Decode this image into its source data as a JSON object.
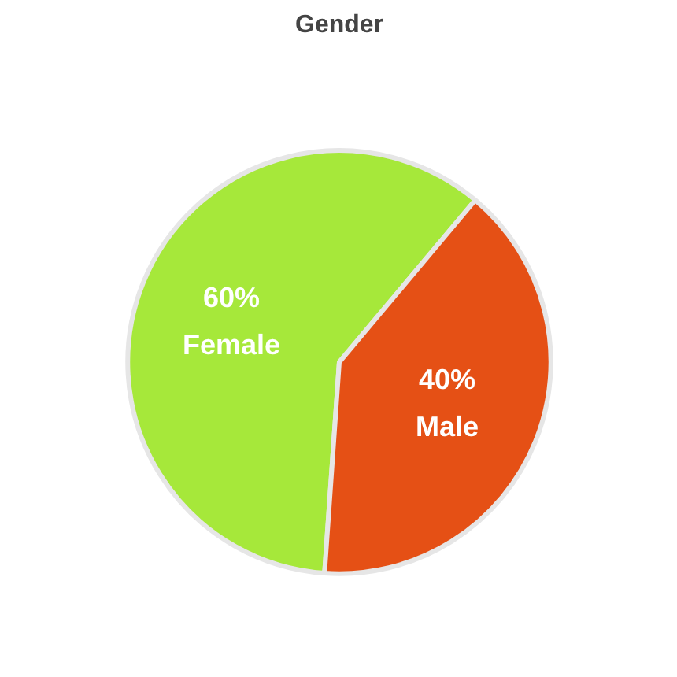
{
  "chart_data": {
    "type": "pie",
    "title": "Gender",
    "categories": [
      "Female",
      "Male"
    ],
    "values": [
      60,
      40
    ],
    "colors": [
      "#a6e83a",
      "#e55015"
    ],
    "value_labels": [
      "60%",
      "40%"
    ]
  }
}
